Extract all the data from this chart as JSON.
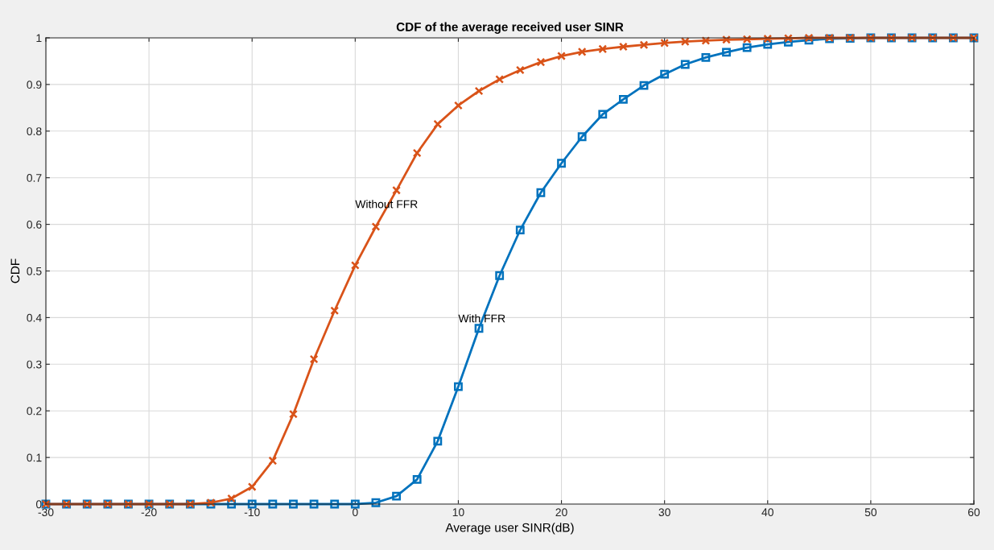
{
  "chart_data": {
    "type": "line",
    "title": "CDF of the average received user SINR",
    "xlabel": "Average user SINR(dB)",
    "ylabel": "CDF",
    "x": [
      -30,
      -28,
      -26,
      -24,
      -22,
      -20,
      -18,
      -16,
      -14,
      -12,
      -10,
      -8,
      -6,
      -4,
      -2,
      0,
      2,
      4,
      6,
      8,
      10,
      12,
      14,
      16,
      18,
      20,
      22,
      24,
      26,
      28,
      30,
      32,
      34,
      36,
      38,
      40,
      42,
      44,
      46,
      48,
      50,
      52,
      54,
      56,
      58,
      60
    ],
    "series": [
      {
        "name": "With FFR",
        "color": "#0072bd",
        "marker": "square",
        "values": [
          0,
          0,
          0,
          0,
          0,
          0,
          0,
          0,
          0,
          0,
          0,
          0,
          0,
          0,
          0,
          0,
          0.003,
          0.017,
          0.053,
          0.135,
          0.252,
          0.377,
          0.49,
          0.588,
          0.668,
          0.731,
          0.788,
          0.836,
          0.868,
          0.898,
          0.922,
          0.943,
          0.958,
          0.969,
          0.979,
          0.986,
          0.991,
          0.995,
          0.998,
          0.999,
          1,
          1,
          1,
          1,
          1,
          1
        ]
      },
      {
        "name": "Without FFR",
        "color": "#d95319",
        "marker": "cross",
        "values": [
          0,
          0,
          0,
          0,
          0,
          0,
          0,
          0,
          0.003,
          0.012,
          0.037,
          0.093,
          0.193,
          0.311,
          0.415,
          0.512,
          0.595,
          0.673,
          0.753,
          0.815,
          0.855,
          0.886,
          0.911,
          0.931,
          0.948,
          0.961,
          0.97,
          0.976,
          0.981,
          0.985,
          0.989,
          0.992,
          0.994,
          0.996,
          0.997,
          0.998,
          0.999,
          1,
          1,
          1,
          1,
          1,
          1,
          1,
          1,
          1
        ]
      }
    ],
    "xlim": [
      -30,
      60
    ],
    "xticks": [
      -30,
      -20,
      -10,
      0,
      10,
      20,
      30,
      40,
      50,
      60
    ],
    "ylim": [
      0,
      1
    ],
    "yticks": [
      0,
      0.1,
      0.2,
      0.3,
      0.4,
      0.5,
      0.6,
      0.7,
      0.8,
      0.9,
      1
    ],
    "grid": true,
    "line_style": "solid"
  }
}
